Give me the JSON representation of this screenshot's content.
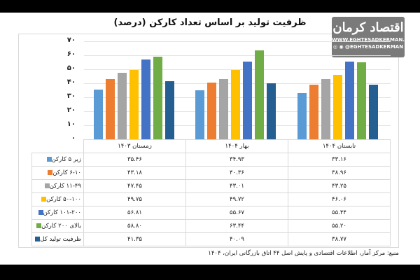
{
  "title": "ظرفیت تولید بر اساس تعداد کارکن (درصد)",
  "logo": {
    "mark": "اقتصاد کرمان",
    "site": "WWW.EGHTESADKERMAN.IR",
    "handle": "◎ ◉ @EGHTESADKERMAN"
  },
  "source": "منبع: مرکز آمار، اطلاعات اقتصادی و پایش اصل ۴۴ اتاق بازرگانی ایران، ۱۴۰۴",
  "y_ticks": [
    "۷۰",
    "۶۰",
    "۵۰",
    "۴۰",
    "۳۰",
    "۲۰",
    "۱۰",
    "۰"
  ],
  "chart_data": {
    "type": "bar",
    "title": "ظرفیت تولید بر اساس تعداد کارکن (درصد)",
    "xlabel": "",
    "ylabel": "درصد",
    "ylim": [
      0,
      70
    ],
    "grid": true,
    "legend_position": "table-left",
    "categories": [
      "زمستان ۱۴۰۳",
      "بهار ۱۴۰۴",
      "تابستان ۱۴۰۴"
    ],
    "series": [
      {
        "name": "زیر ۵ کارکن",
        "color": "#5B9BD5",
        "values": [
          35.46,
          34.93,
          33.16
        ],
        "labels": [
          "۳۵.۴۶",
          "۳۴.۹۳",
          "۳۳.۱۶"
        ]
      },
      {
        "name": "۶-۱۰ کارکن",
        "color": "#ED7D31",
        "values": [
          43.18,
          40.36,
          38.96
        ],
        "labels": [
          "۴۳.۱۸",
          "۴۰.۳۶",
          "۳۸.۹۶"
        ]
      },
      {
        "name": "۱۱-۴۹ کارکن",
        "color": "#A5A5A5",
        "values": [
          47.45,
          43.01,
          43.25
        ],
        "labels": [
          "۴۷.۴۵",
          "۴۳.۰۱",
          "۴۳.۲۵"
        ]
      },
      {
        "name": "۵۰-۱۰۰ کارکن",
        "color": "#FFC000",
        "values": [
          49.75,
          49.72,
          46.06
        ],
        "labels": [
          "۴۹.۷۵",
          "۴۹.۷۲",
          "۴۶.۰۶"
        ]
      },
      {
        "name": "۱۰۱-۲۰۰ کارکن",
        "color": "#4472C4",
        "values": [
          56.81,
          55.67,
          55.44
        ],
        "labels": [
          "۵۶.۸۱",
          "۵۵.۶۷",
          "۵۵.۴۴"
        ]
      },
      {
        "name": "بالای ۲۰۰ کارکن",
        "color": "#70AD47",
        "values": [
          58.8,
          63.44,
          55.2
        ],
        "labels": [
          "۵۸.۸۰",
          "۶۳.۴۴",
          "۵۵.۲۰"
        ]
      },
      {
        "name": "ظرفیت تولید کل",
        "color": "#255E91",
        "values": [
          41.35,
          40.09,
          38.77
        ],
        "labels": [
          "۴۱.۳۵",
          "۴۰.۰۹",
          "۳۸.۷۷"
        ]
      }
    ]
  }
}
